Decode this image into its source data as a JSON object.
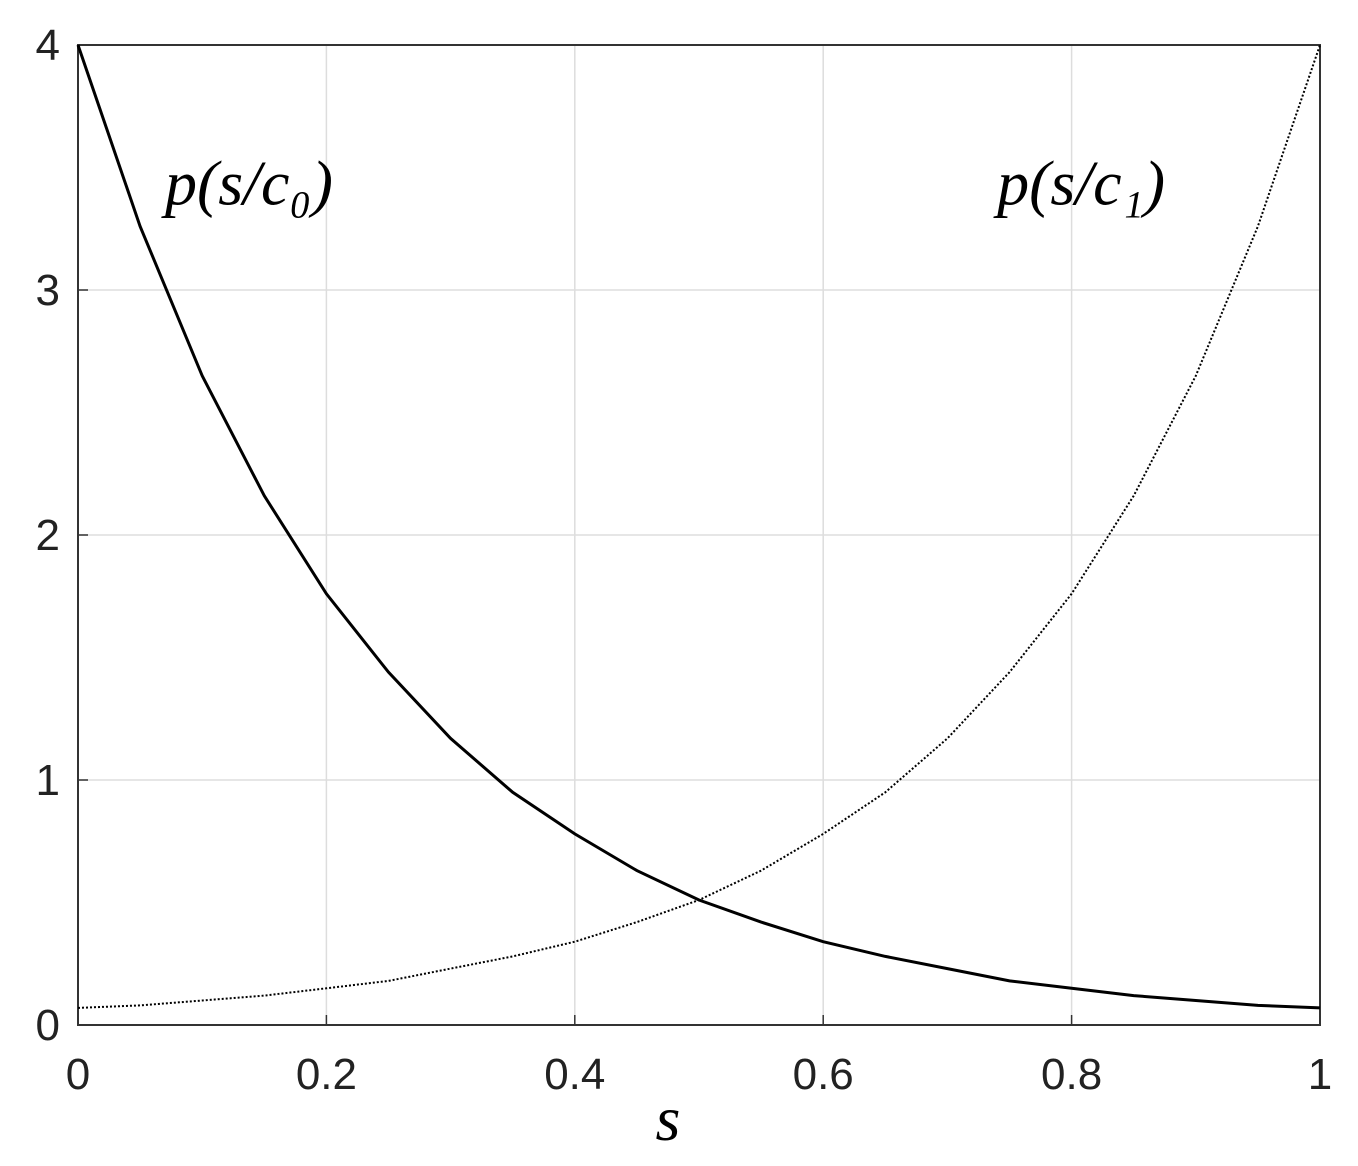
{
  "chart_data": {
    "type": "line",
    "x_label": "s",
    "x": [
      0,
      0.05,
      0.1,
      0.15,
      0.2,
      0.25,
      0.3,
      0.35,
      0.4,
      0.45,
      0.5,
      0.55,
      0.6,
      0.65,
      0.7,
      0.75,
      0.8,
      0.85,
      0.9,
      0.95,
      1
    ],
    "series": [
      {
        "color": "#000000",
        "dash": "solid",
        "values": [
          4,
          3.26,
          2.65,
          2.16,
          1.76,
          1.44,
          1.17,
          0.95,
          0.78,
          0.63,
          0.51,
          0.42,
          0.34,
          0.28,
          0.23,
          0.18,
          0.15,
          0.12,
          0.1,
          0.08,
          0.07
        ]
      },
      {
        "color": "#000000",
        "dash": "dotted",
        "values": [
          0.07,
          0.08,
          0.1,
          0.12,
          0.15,
          0.18,
          0.23,
          0.28,
          0.34,
          0.42,
          0.51,
          0.63,
          0.78,
          0.95,
          1.17,
          1.44,
          1.76,
          2.16,
          2.65,
          3.26,
          4
        ]
      }
    ],
    "annotations": [
      {
        "text": "p(s/c₀)",
        "x": 0.07,
        "y": 3.35
      },
      {
        "text": "p(s/c₁)",
        "x": 0.74,
        "y": 3.35
      }
    ],
    "xlim": [
      0,
      1
    ],
    "ylim": [
      0,
      4
    ],
    "xticks": [
      0,
      0.2,
      0.4,
      0.6,
      0.8,
      1
    ],
    "yticks": [
      0,
      1,
      2,
      3,
      4
    ],
    "grid": true
  }
}
